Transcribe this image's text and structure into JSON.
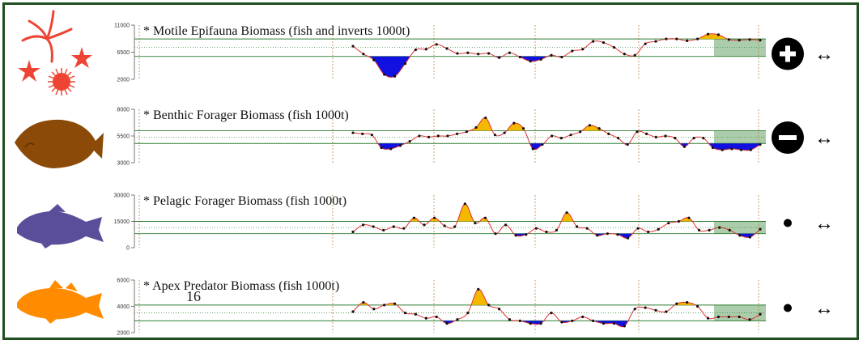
{
  "colors": {
    "frame": "#1f4f1f",
    "line": "#e03030",
    "point": "#111111",
    "above": "#f5b800",
    "below": "#1010e0",
    "refline": "#2e7d32",
    "shade": "#8fbc8f",
    "vline": "#b8864b"
  },
  "overlay_text": "16",
  "chart_data": [
    {
      "type": "line",
      "title": "* Motile Epifauna Biomass (fish and inverts 1000t)",
      "ylim": [
        2000,
        11000
      ],
      "yticks": [
        "11000",
        "6500",
        "2000"
      ],
      "upper": 8700,
      "mean": 7300,
      "lower": 5800,
      "values": [
        7500,
        6200,
        5200,
        2800,
        2500,
        4600,
        6900,
        7000,
        7800,
        7100,
        6300,
        6400,
        6200,
        6300,
        5600,
        6400,
        5700,
        5000,
        5300,
        6000,
        5700,
        6700,
        7000,
        8300,
        8100,
        7300,
        6200,
        6000,
        7900,
        8300,
        8700,
        8700,
        8400,
        8700,
        9500,
        9400,
        8600,
        8500,
        8600,
        8500
      ],
      "trend_symbol": "plus-icon",
      "trend_glyph": "+",
      "arrow_glyph": "↔",
      "icon": "starfish-icon"
    },
    {
      "type": "line",
      "title": "* Benthic Forager Biomass (fish 1000t)",
      "ylim": [
        3000,
        8000
      ],
      "yticks": [
        "8000",
        "5500",
        "3000"
      ],
      "upper": 6000,
      "mean": 5400,
      "lower": 4800,
      "values": [
        5800,
        5700,
        5600,
        4400,
        4300,
        4600,
        5000,
        5500,
        5400,
        5500,
        5500,
        5700,
        5900,
        6300,
        7200,
        5600,
        5800,
        6700,
        6200,
        4300,
        4700,
        5500,
        5300,
        5600,
        5900,
        6500,
        6200,
        5700,
        5300,
        4700,
        5900,
        5700,
        5400,
        5500,
        5300,
        4500,
        5300,
        5300,
        4400,
        4200,
        4300,
        4200,
        4200,
        4700
      ],
      "trend_symbol": "minus-icon",
      "trend_glyph": "−",
      "arrow_glyph": "↔",
      "icon": "flatfish-icon"
    },
    {
      "type": "line",
      "title": "* Pelagic Forager Biomass (fish 1000t)",
      "ylim": [
        0,
        30000
      ],
      "yticks": [
        "30000",
        "15000",
        "0"
      ],
      "upper": 15000,
      "mean": 11500,
      "lower": 8000,
      "values": [
        9000,
        13000,
        12000,
        10000,
        12000,
        11000,
        17000,
        13000,
        17000,
        12500,
        12000,
        25000,
        14000,
        17000,
        8000,
        13000,
        7000,
        7500,
        11000,
        9000,
        10000,
        20000,
        12000,
        11000,
        7000,
        8000,
        7500,
        5500,
        11000,
        9000,
        10500,
        14000,
        15000,
        17000,
        10000,
        10000,
        11500,
        10000,
        7000,
        6000,
        10500
      ],
      "trend_symbol": "dot-icon",
      "trend_glyph": "●",
      "arrow_glyph": "↔",
      "icon": "fish-silhouette-icon"
    },
    {
      "type": "line",
      "title": "* Apex Predator Biomass (fish 1000t)",
      "ylim": [
        2000,
        6000
      ],
      "yticks": [
        "6000",
        "4000",
        "2000"
      ],
      "upper": 4100,
      "mean": 3500,
      "lower": 2900,
      "values": [
        3600,
        4300,
        3800,
        4100,
        4200,
        3500,
        3400,
        3100,
        3200,
        2700,
        3000,
        3500,
        5300,
        4100,
        3800,
        3000,
        2900,
        2700,
        2700,
        3500,
        2800,
        2900,
        3200,
        2900,
        2700,
        2700,
        2500,
        3800,
        3900,
        3700,
        3600,
        4200,
        4300,
        4000,
        3100,
        3200,
        3200,
        3200,
        3000,
        3400
      ],
      "trend_symbol": "dot-icon",
      "trend_glyph": "●",
      "arrow_glyph": "↔",
      "icon": "cod-silhouette-icon"
    }
  ]
}
